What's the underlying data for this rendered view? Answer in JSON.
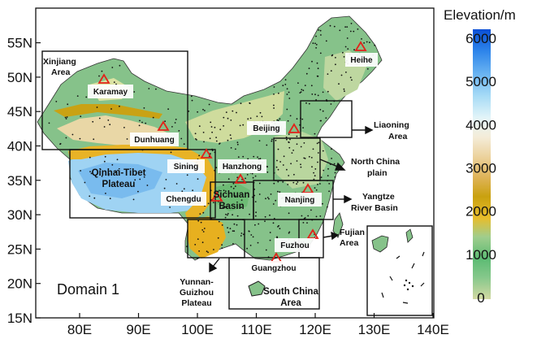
{
  "map": {
    "lon_ticks": [
      "80E",
      "90E",
      "100E",
      "110E",
      "120E",
      "130E",
      "140E"
    ],
    "lat_ticks": [
      "15N",
      "20N",
      "25N",
      "30N",
      "35N",
      "40N",
      "45N",
      "50N",
      "55N"
    ],
    "domain_label": "Domain 1"
  },
  "colorbar": {
    "title": "Elevation/m",
    "labels": [
      "6000",
      "5000",
      "4000",
      "3000",
      "2000",
      "1000",
      "0"
    ],
    "colors": [
      "#0a4fd6",
      "#1c72e6",
      "#3a92ee",
      "#62b0f2",
      "#8ccbf5",
      "#b5e2f7",
      "#dff3f8",
      "#f7efdc",
      "#f1dcb6",
      "#e8c687",
      "#dfb25a",
      "#d4a033",
      "#c8a40e",
      "#e2b81f",
      "#9fcd8d",
      "#6cc07c",
      "#5dbb74",
      "#7cc586",
      "#a6d29a",
      "#cfd9a5"
    ]
  },
  "places": [
    {
      "name": "Karamay"
    },
    {
      "name": "Dunhuang"
    },
    {
      "name": "Sining"
    },
    {
      "name": "Hanzhong"
    },
    {
      "name": "Chengdu"
    },
    {
      "name": "Beijing"
    },
    {
      "name": "Nanjing"
    },
    {
      "name": "Fuzhou"
    },
    {
      "name": "Guangzhou"
    },
    {
      "name": "Heihe"
    }
  ],
  "regions": [
    {
      "lines": [
        "Xinjiang",
        "Area"
      ]
    },
    {
      "lines": [
        "Qinhai-Tibet",
        "Plateau"
      ]
    },
    {
      "lines": [
        "Sichuan",
        "Basin"
      ]
    },
    {
      "lines": [
        "Liaoning",
        "Area"
      ]
    },
    {
      "lines": [
        "North China",
        "plain"
      ]
    },
    {
      "lines": [
        "Yangtze",
        "River Basin"
      ]
    },
    {
      "lines": [
        "Fujian",
        "Area"
      ]
    },
    {
      "lines": [
        "Yunnan-",
        "Guizhou",
        "Plateau"
      ]
    },
    {
      "lines": [
        "South China",
        "Area"
      ]
    }
  ]
}
